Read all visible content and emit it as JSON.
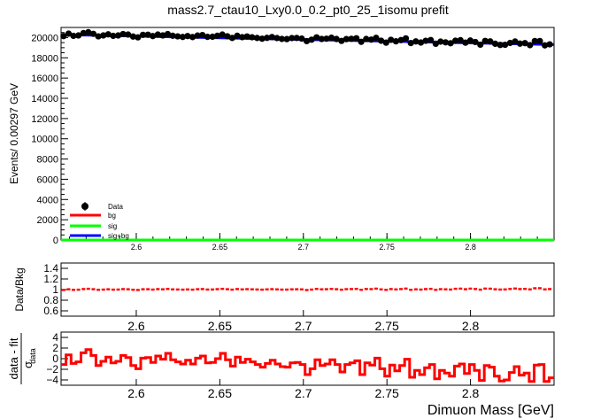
{
  "title": "mass2.7_ctau10_Lxy0.0_0.2_pt0_25_1isomu   prefit",
  "chart_data": [
    {
      "type": "scatter",
      "panel": "main",
      "ylabel": "Events/ 0.00297 GeV",
      "xlim": [
        2.555,
        2.85
      ],
      "ylim": [
        0,
        21000
      ],
      "xticks": [
        "2.6",
        "2.65",
        "2.7",
        "2.75",
        "2.8"
      ],
      "yticks": [
        "0",
        "2000",
        "4000",
        "6000",
        "8000",
        "10000",
        "12000",
        "14000",
        "16000",
        "18000",
        "20000"
      ],
      "legend": [
        "Data",
        "bg",
        "sig",
        "sig+bg"
      ],
      "legend_position": "bottom-left",
      "colors": {
        "data": "#000000",
        "bg": "#ff0000",
        "sig": "#00ff00",
        "sigbg": "#0000ff"
      },
      "series": [
        {
          "name": "Data",
          "x": [
            2.5565,
            2.5595,
            2.5624,
            2.5654,
            2.5684,
            2.5713,
            2.5743,
            2.5773,
            2.5803,
            2.5832,
            2.5862,
            2.5892,
            2.5921,
            2.5951,
            2.5981,
            2.601,
            2.604,
            2.607,
            2.6099,
            2.6129,
            2.6159,
            2.6188,
            2.6218,
            2.6248,
            2.6278,
            2.6307,
            2.6337,
            2.6367,
            2.6396,
            2.6426,
            2.6456,
            2.6485,
            2.6515,
            2.6545,
            2.6574,
            2.6604,
            2.6634,
            2.6663,
            2.6693,
            2.6723,
            2.6753,
            2.6782,
            2.6812,
            2.6842,
            2.6871,
            2.6901,
            2.6931,
            2.696,
            2.699,
            2.702,
            2.7049,
            2.7079,
            2.7109,
            2.7138,
            2.7168,
            2.7198,
            2.7228,
            2.7257,
            2.7287,
            2.7317,
            2.7346,
            2.7376,
            2.7406,
            2.7435,
            2.7465,
            2.7495,
            2.7524,
            2.7554,
            2.7584,
            2.7613,
            2.7643,
            2.7673,
            2.7703,
            2.7732,
            2.7762,
            2.7792,
            2.7821,
            2.7851,
            2.7881,
            2.791,
            2.794,
            2.797,
            2.7999,
            2.8029,
            2.8059,
            2.8088,
            2.8118,
            2.8148,
            2.8178,
            2.8207,
            2.8237,
            2.8267,
            2.8296,
            2.8326,
            2.8356,
            2.8385,
            2.8415,
            2.8445,
            2.8474
          ],
          "y": [
            20140,
            20390,
            20170,
            20210,
            20440,
            20530,
            20370,
            20120,
            20210,
            20320,
            20170,
            20210,
            20350,
            20300,
            20100,
            20020,
            20270,
            20280,
            20150,
            20300,
            20210,
            20350,
            20180,
            20120,
            20060,
            20150,
            20050,
            20200,
            20250,
            20070,
            20080,
            20180,
            20300,
            20130,
            19960,
            20180,
            20040,
            20110,
            20030,
            19960,
            19890,
            19970,
            20050,
            19950,
            19870,
            19850,
            19950,
            19960,
            19900,
            19650,
            19790,
            20020,
            19860,
            19890,
            19990,
            19860,
            19670,
            19850,
            19880,
            19930,
            19580,
            19860,
            19800,
            19970,
            19690,
            19500,
            19780,
            19630,
            19750,
            19920,
            19460,
            19620,
            19510,
            19680,
            19760,
            19390,
            19600,
            19530,
            19440,
            19690,
            19740,
            19500,
            19710,
            19560,
            19300,
            19670,
            19620,
            19390,
            19270,
            19290,
            19470,
            19610,
            19400,
            19450,
            19250,
            19660,
            19660,
            19230,
            19330
          ]
        },
        {
          "name": "bg",
          "x": [
            2.555,
            2.85
          ],
          "y": [
            0,
            0
          ]
        },
        {
          "name": "sig",
          "x": [
            2.555,
            2.85
          ],
          "y": [
            0,
            0
          ]
        },
        {
          "name": "sig+bg",
          "x": [
            2.555,
            2.85
          ],
          "y": [
            20290,
            19310
          ]
        }
      ]
    },
    {
      "type": "scatter",
      "panel": "ratio",
      "ylabel": "Data/Bkg",
      "xlim": [
        2.555,
        2.85
      ],
      "ylim": [
        0.5,
        1.5
      ],
      "xticks": [
        "2.6",
        "2.65",
        "2.7",
        "2.75",
        "2.8"
      ],
      "yticks": [
        "0.6",
        "0.8",
        "1",
        "1.2",
        "1.4"
      ],
      "series": [
        {
          "name": "",
          "y": [
            0.993,
            1.006,
            0.995,
            0.998,
            1.01,
            1.015,
            1.007,
            0.996,
            1.0,
            1.006,
            0.999,
            1.001,
            1.009,
            1.006,
            0.997,
            0.993,
            1.006,
            1.007,
            1.0,
            1.009,
            1.005,
            1.012,
            1.004,
            1.002,
            0.999,
            1.003,
            0.999,
            1.007,
            1.01,
            1.001,
            1.002,
            1.008,
            1.014,
            1.007,
            0.999,
            1.01,
            1.004,
            1.008,
            1.005,
            1.002,
            0.999,
            1.004,
            1.008,
            1.004,
            1.0,
            1.0,
            1.005,
            1.006,
            1.004,
            0.992,
            1.0,
            1.012,
            1.005,
            1.007,
            1.013,
            1.007,
            0.998,
            1.008,
            1.01,
            1.013,
            0.996,
            1.011,
            1.009,
            1.018,
            1.004,
            0.995,
            1.01,
            1.003,
            1.01,
            1.019,
            0.996,
            1.005,
            1.0,
            1.009,
            1.014,
            0.996,
            1.008,
            1.005,
            1.001,
            1.015,
            1.018,
            1.007,
            1.018,
            1.011,
            0.999,
            1.019,
            1.017,
            1.006,
            1.001,
            1.003,
            1.012,
            1.02,
            1.01,
            1.013,
            1.004,
            1.025,
            1.026,
            1.004,
            1.01
          ]
        }
      ]
    },
    {
      "type": "line",
      "panel": "pull",
      "xlabel": "Dimuon Mass [GeV]",
      "ylabel_main": "data - fit",
      "ylabel_sub": "σ",
      "ylabel_subscript": "data",
      "xlim": [
        2.555,
        2.85
      ],
      "ylim": [
        -5,
        5
      ],
      "xticks": [
        "2.6",
        "2.65",
        "2.7",
        "2.75",
        "2.8"
      ],
      "yticks": [
        "−4",
        "−2",
        "0",
        "2",
        "4"
      ],
      "series": [
        {
          "name": "",
          "y": [
            -1.1,
            0.7,
            -0.9,
            -0.6,
            1.1,
            1.7,
            0.6,
            -1.3,
            -0.5,
            0.3,
            -0.8,
            -0.5,
            0.6,
            0.2,
            -1.3,
            -1.9,
            0.1,
            0.2,
            -0.7,
            0.5,
            -0.1,
            1.0,
            -0.2,
            -0.6,
            -1.0,
            -0.3,
            -1.0,
            0.1,
            0.5,
            -0.8,
            -0.7,
            0.0,
            1.0,
            -0.2,
            -1.4,
            0.3,
            -0.7,
            -0.1,
            -0.6,
            -1.1,
            -1.6,
            -0.9,
            -0.3,
            -1.0,
            -1.5,
            -1.6,
            -0.8,
            -0.7,
            -1.1,
            -3.0,
            -1.9,
            -0.2,
            -1.3,
            -1.0,
            -0.2,
            -1.1,
            -2.5,
            -1.1,
            -0.8,
            -0.4,
            -3.0,
            -0.8,
            -1.2,
            0.1,
            -1.9,
            -3.3,
            -1.2,
            -2.3,
            -1.3,
            -0.1,
            -3.5,
            -2.2,
            -3.0,
            -1.7,
            -1.1,
            -3.8,
            -2.2,
            -2.7,
            -3.3,
            -1.4,
            -1.0,
            -2.8,
            -1.1,
            -2.2,
            -4.1,
            -1.3,
            -1.6,
            -3.3,
            -4.2,
            -4.0,
            -2.6,
            -1.5,
            -3.1,
            -2.7,
            -4.3,
            -1.2,
            -1.1,
            -4.3,
            -3.6
          ]
        }
      ]
    }
  ]
}
